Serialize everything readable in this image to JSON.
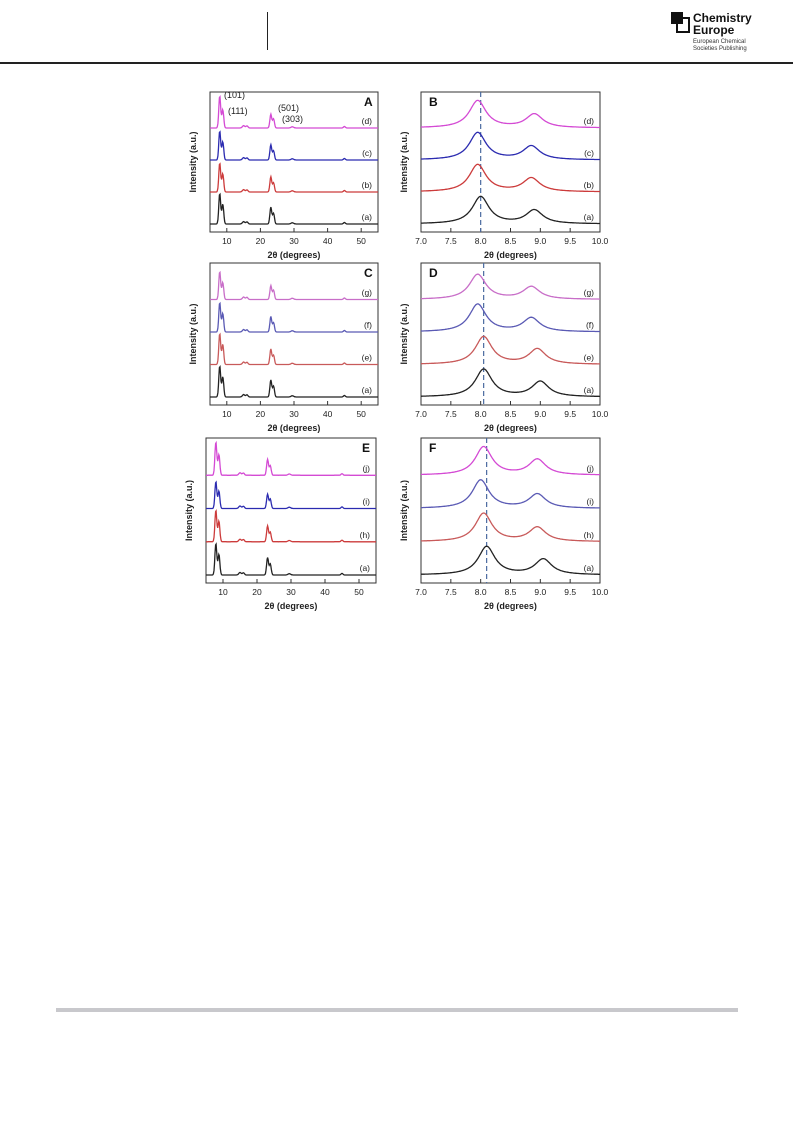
{
  "header": {
    "logo": {
      "title_line1": "Chemistry",
      "title_line2": "Europe",
      "sub_line1": "European Chemical",
      "sub_line2": "Societies Publishing"
    }
  },
  "colors": {
    "a": "#222222",
    "red": "#cc3b3b",
    "blue": "#2b2bb0",
    "magenta": "#d44ad4",
    "e": "#c85a5a",
    "f": "#5a5ab4",
    "g": "#c86ec8",
    "dashed": "#4a6aa0"
  },
  "chart_data": [
    {
      "type": "line",
      "panel": "A",
      "xlabel": "2θ (degrees)",
      "ylabel": "Intensity (a.u.)",
      "xlim": [
        5,
        55
      ],
      "xticks": [
        "10",
        "20",
        "30",
        "40",
        "50"
      ],
      "annotations": [
        "(101)",
        "(111)",
        "(501)",
        "(303)"
      ],
      "series": [
        {
          "name": "(a)",
          "color": "#222222",
          "peaks": [
            [
              7.9,
              1.0
            ],
            [
              8.8,
              0.65
            ],
            [
              23.1,
              0.55
            ],
            [
              23.9,
              0.35
            ],
            [
              45.0,
              0.05
            ]
          ]
        },
        {
          "name": "(b)",
          "color": "#cc3b3b",
          "peaks": [
            [
              7.9,
              0.95
            ],
            [
              8.8,
              0.6
            ],
            [
              23.1,
              0.5
            ],
            [
              23.9,
              0.3
            ],
            [
              45.0,
              0.05
            ]
          ]
        },
        {
          "name": "(c)",
          "color": "#2b2bb0",
          "peaks": [
            [
              7.9,
              0.95
            ],
            [
              8.8,
              0.6
            ],
            [
              23.1,
              0.5
            ],
            [
              23.9,
              0.3
            ],
            [
              45.0,
              0.05
            ]
          ]
        },
        {
          "name": "(d)",
          "color": "#d44ad4",
          "peaks": [
            [
              7.9,
              1.05
            ],
            [
              8.8,
              0.6
            ],
            [
              23.1,
              0.45
            ],
            [
              23.9,
              0.3
            ],
            [
              45.0,
              0.05
            ]
          ]
        }
      ]
    },
    {
      "type": "line",
      "panel": "B",
      "xlabel": "2θ (degrees)",
      "ylabel": "Intensity (a.u.)",
      "xlim": [
        7.0,
        10.0
      ],
      "xticks": [
        "7.0",
        "7.5",
        "8.0",
        "8.5",
        "9.0",
        "9.5",
        "10.0"
      ],
      "dashed_x": 8.0,
      "series": [
        {
          "name": "(a)",
          "color": "#222222",
          "peaks": [
            [
              8.0,
              1.0
            ],
            [
              8.9,
              0.5
            ]
          ]
        },
        {
          "name": "(b)",
          "color": "#cc3b3b",
          "peaks": [
            [
              7.95,
              1.0
            ],
            [
              8.85,
              0.5
            ]
          ]
        },
        {
          "name": "(c)",
          "color": "#2b2bb0",
          "peaks": [
            [
              7.95,
              1.0
            ],
            [
              8.85,
              0.5
            ]
          ]
        },
        {
          "name": "(d)",
          "color": "#d44ad4",
          "peaks": [
            [
              7.95,
              1.0
            ],
            [
              8.9,
              0.5
            ]
          ]
        }
      ]
    },
    {
      "type": "line",
      "panel": "C",
      "xlabel": "2θ (degrees)",
      "ylabel": "Intensity (a.u.)",
      "xlim": [
        5,
        55
      ],
      "xticks": [
        "10",
        "20",
        "30",
        "40",
        "50"
      ],
      "series": [
        {
          "name": "(a)",
          "color": "#222222",
          "peaks": [
            [
              7.9,
              1.0
            ],
            [
              8.8,
              0.65
            ],
            [
              23.1,
              0.55
            ],
            [
              23.9,
              0.35
            ],
            [
              45.0,
              0.05
            ]
          ]
        },
        {
          "name": "(e)",
          "color": "#c85a5a",
          "peaks": [
            [
              7.9,
              1.0
            ],
            [
              8.8,
              0.65
            ],
            [
              23.1,
              0.5
            ],
            [
              23.9,
              0.3
            ],
            [
              45.0,
              0.05
            ]
          ]
        },
        {
          "name": "(f)",
          "color": "#5a5ab4",
          "peaks": [
            [
              7.9,
              0.95
            ],
            [
              8.8,
              0.6
            ],
            [
              23.1,
              0.5
            ],
            [
              23.9,
              0.3
            ],
            [
              45.0,
              0.05
            ]
          ]
        },
        {
          "name": "(g)",
          "color": "#c86ec8",
          "peaks": [
            [
              7.9,
              0.9
            ],
            [
              8.8,
              0.55
            ],
            [
              23.1,
              0.45
            ],
            [
              23.9,
              0.3
            ],
            [
              45.0,
              0.05
            ]
          ]
        }
      ]
    },
    {
      "type": "line",
      "panel": "D",
      "xlabel": "2θ (degrees)",
      "ylabel": "Intensity (a.u.)",
      "xlim": [
        7.0,
        10.0
      ],
      "xticks": [
        "7.0",
        "7.5",
        "8.0",
        "8.5",
        "9.0",
        "9.5",
        "10.0"
      ],
      "dashed_x": 8.05,
      "series": [
        {
          "name": "(a)",
          "color": "#222222",
          "peaks": [
            [
              8.05,
              1.0
            ],
            [
              9.0,
              0.55
            ]
          ]
        },
        {
          "name": "(e)",
          "color": "#c85a5a",
          "peaks": [
            [
              8.05,
              1.0
            ],
            [
              8.95,
              0.55
            ]
          ]
        },
        {
          "name": "(f)",
          "color": "#5a5ab4",
          "peaks": [
            [
              7.95,
              1.0
            ],
            [
              8.85,
              0.5
            ]
          ]
        },
        {
          "name": "(g)",
          "color": "#c86ec8",
          "peaks": [
            [
              7.95,
              0.9
            ],
            [
              8.85,
              0.45
            ]
          ]
        }
      ]
    },
    {
      "type": "line",
      "panel": "E",
      "xlabel": "2θ (degrees)",
      "ylabel": "Intensity (a.u.)",
      "xlim": [
        5,
        55
      ],
      "xticks": [
        "10",
        "20",
        "30",
        "40",
        "50"
      ],
      "series": [
        {
          "name": "(a)",
          "color": "#222222",
          "peaks": [
            [
              7.9,
              1.0
            ],
            [
              8.8,
              0.65
            ],
            [
              23.1,
              0.55
            ],
            [
              23.9,
              0.35
            ],
            [
              45.0,
              0.05
            ]
          ]
        },
        {
          "name": "(h)",
          "color": "#cc3b3b",
          "peaks": [
            [
              7.9,
              1.0
            ],
            [
              8.8,
              0.65
            ],
            [
              23.1,
              0.5
            ],
            [
              23.9,
              0.3
            ],
            [
              45.0,
              0.05
            ]
          ]
        },
        {
          "name": "(i)",
          "color": "#2b2bb0",
          "peaks": [
            [
              7.9,
              0.85
            ],
            [
              8.8,
              0.55
            ],
            [
              23.1,
              0.45
            ],
            [
              23.9,
              0.3
            ],
            [
              45.0,
              0.05
            ]
          ]
        },
        {
          "name": "(j)",
          "color": "#d44ad4",
          "peaks": [
            [
              7.9,
              1.05
            ],
            [
              8.8,
              0.65
            ],
            [
              23.1,
              0.5
            ],
            [
              23.9,
              0.3
            ],
            [
              45.0,
              0.05
            ]
          ]
        }
      ]
    },
    {
      "type": "line",
      "panel": "F",
      "xlabel": "2θ (degrees)",
      "ylabel": "Intensity (a.u.)",
      "xlim": [
        7.0,
        10.0
      ],
      "xticks": [
        "7.0",
        "7.5",
        "8.0",
        "8.5",
        "9.0",
        "9.5",
        "10.0"
      ],
      "dashed_x": 8.1,
      "series": [
        {
          "name": "(a)",
          "color": "#222222",
          "peaks": [
            [
              8.1,
              1.0
            ],
            [
              9.05,
              0.55
            ]
          ]
        },
        {
          "name": "(h)",
          "color": "#c85a5a",
          "peaks": [
            [
              8.05,
              1.0
            ],
            [
              8.95,
              0.5
            ]
          ]
        },
        {
          "name": "(i)",
          "color": "#5a5ab4",
          "peaks": [
            [
              8.0,
              1.0
            ],
            [
              8.95,
              0.5
            ]
          ]
        },
        {
          "name": "(j)",
          "color": "#d44ad4",
          "peaks": [
            [
              8.05,
              1.0
            ],
            [
              8.95,
              0.55
            ]
          ]
        }
      ]
    }
  ]
}
